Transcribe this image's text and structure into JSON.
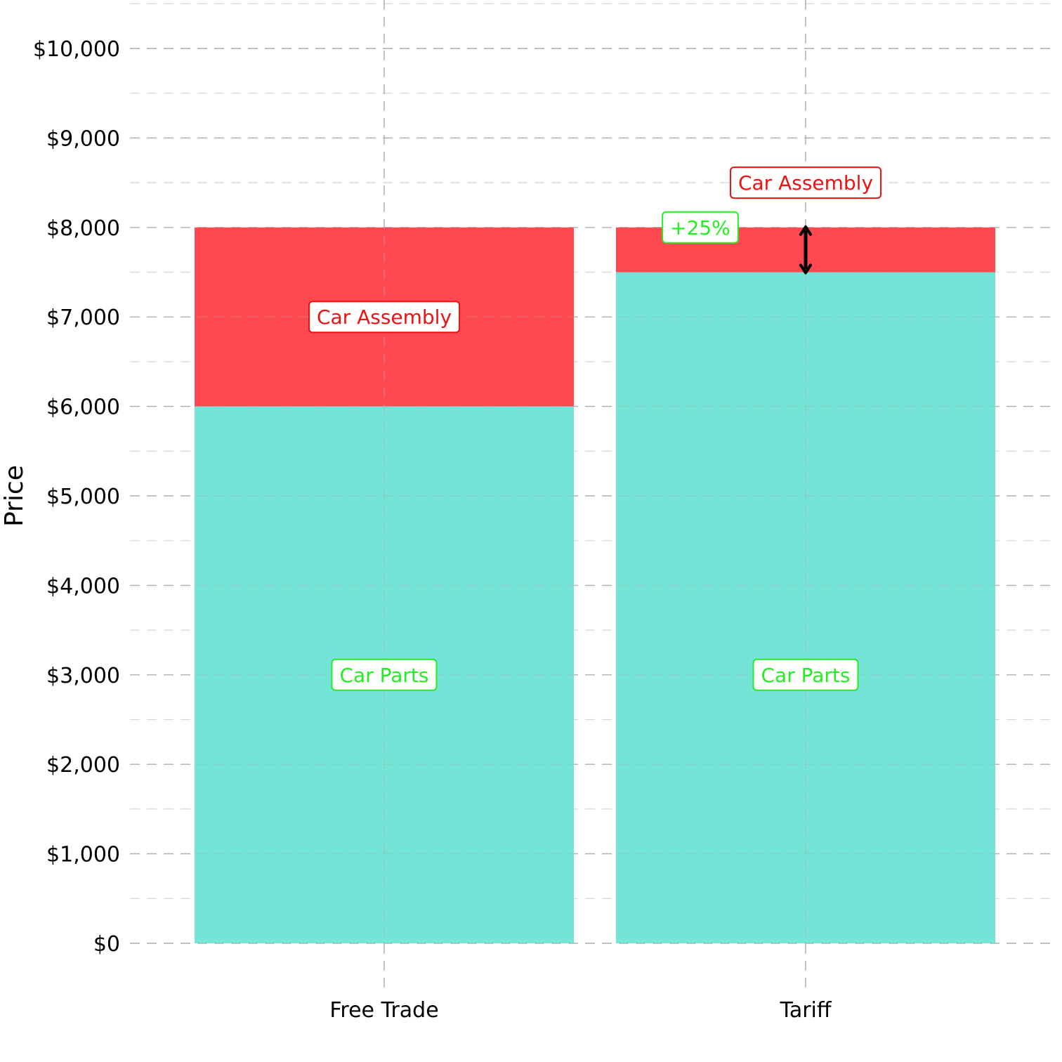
{
  "chart_data": {
    "type": "bar",
    "stacked": true,
    "categories": [
      "Free Trade",
      "Tariff"
    ],
    "series": [
      {
        "key": "parts",
        "values": [
          6000,
          7500
        ],
        "color": "#6ce3d3"
      },
      {
        "key": "assembly",
        "values": [
          2000,
          500
        ],
        "color": "#ff3e47"
      }
    ],
    "ylabel": "Price",
    "xlabel": "",
    "ylim": [
      0,
      10000
    ],
    "y_ticks": [
      0,
      1000,
      2000,
      3000,
      4000,
      5000,
      6000,
      7000,
      8000,
      9000,
      10000
    ],
    "y_tick_labels": [
      "$0",
      "$1,000",
      "$2,000",
      "$3,000",
      "$4,000",
      "$5,000",
      "$6,000",
      "$7,000",
      "$8,000",
      "$9,000",
      "$10,000"
    ],
    "grid": {
      "major": true,
      "minor": true,
      "style": "dashed"
    },
    "legend": "none",
    "annotations": [
      {
        "text": "Car Parts",
        "category": "Free Trade",
        "y": 3000,
        "text_color": "#22ee22",
        "border_color": "#22ee22"
      },
      {
        "text": "Car Assembly",
        "category": "Free Trade",
        "y": 7000,
        "text_color": "#ee1111",
        "border_color": "#ee1111"
      },
      {
        "text": "Car Parts",
        "category": "Tariff",
        "y": 3000,
        "text_color": "#22ee22",
        "border_color": "#22ee22"
      },
      {
        "text": "Car Assembly",
        "category": "Tariff",
        "y": 8500,
        "text_color": "#ee1111",
        "border_color": "#ee1111"
      },
      {
        "text": "+25%",
        "category": "Tariff",
        "y": 8000,
        "x_offset": -0.25,
        "text_color": "#22ee22",
        "border_color": "#22ee22"
      }
    ],
    "arrow": {
      "category": "Tariff",
      "y_from": 7500,
      "y_to": 8000,
      "color": "#000000"
    }
  }
}
